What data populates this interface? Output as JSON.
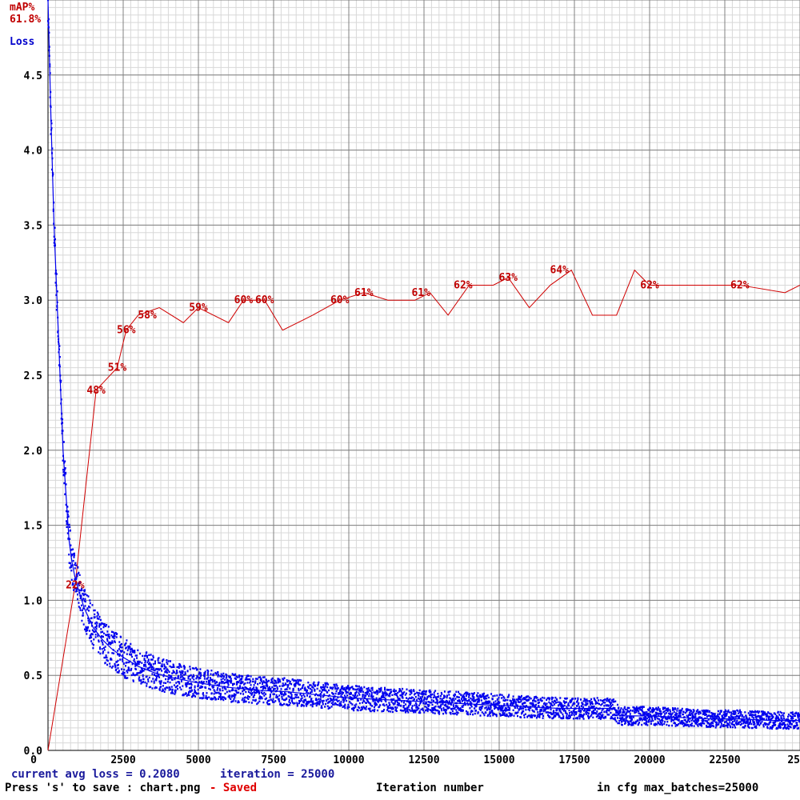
{
  "legend": {
    "map_label": "mAP%",
    "map_value": "61.8%",
    "loss_label": "Loss"
  },
  "status": {
    "current_loss": "current avg loss = 0.2080",
    "iteration": "iteration = 25000",
    "save_hint": "Press 's' to save : chart.png",
    "saved": "- Saved",
    "xlabel": "Iteration number",
    "max_batches": "in cfg max_batches=25000"
  },
  "colors": {
    "loss": "#0000ee",
    "map": "#d00000",
    "grid_major": "#808080",
    "grid_minor": "#d8d8d8"
  },
  "chart_data": {
    "type": "line",
    "xlabel": "Iteration number",
    "ylabel": "Loss",
    "xlim": [
      0,
      25000
    ],
    "ylim": [
      0,
      5.0
    ],
    "x_ticks": [
      "0",
      "2500",
      "5000",
      "7500",
      "10000",
      "12500",
      "15000",
      "17500",
      "20000",
      "22500",
      "25"
    ],
    "y_ticks": [
      "0.0",
      "0.5",
      "1.0",
      "1.5",
      "2.0",
      "2.5",
      "3.0",
      "3.5",
      "4.0",
      "4.5"
    ],
    "grid": true,
    "series": [
      {
        "name": "Loss",
        "x": [
          0,
          100,
          200,
          300,
          400,
          500,
          600,
          700,
          800,
          900,
          1000,
          1200,
          1500,
          1800,
          2100,
          2500,
          3000,
          3500,
          4000,
          5000,
          6000,
          7000,
          8000,
          9000,
          10000,
          11000,
          12000,
          13000,
          14000,
          15000,
          16000,
          17000,
          18000,
          18800,
          19000,
          20000,
          21000,
          22000,
          23000,
          24000,
          25000
        ],
        "values": [
          5.0,
          4.2,
          3.5,
          3.0,
          2.5,
          2.0,
          1.7,
          1.4,
          1.25,
          1.15,
          1.08,
          0.95,
          0.82,
          0.74,
          0.68,
          0.62,
          0.56,
          0.52,
          0.49,
          0.45,
          0.42,
          0.4,
          0.39,
          0.37,
          0.35,
          0.34,
          0.33,
          0.32,
          0.31,
          0.3,
          0.29,
          0.28,
          0.28,
          0.28,
          0.23,
          0.23,
          0.22,
          0.21,
          0.21,
          0.2,
          0.2
        ]
      },
      {
        "name": "mAP%",
        "x": [
          0,
          900,
          1600,
          2300,
          2600,
          3000,
          3700,
          4500,
          5000,
          6000,
          6500,
          7200,
          7800,
          8800,
          9700,
          10500,
          11300,
          12200,
          12700,
          13300,
          14000,
          14800,
          15300,
          16000,
          16700,
          17400,
          18100,
          18900,
          19500,
          20000,
          21000,
          22000,
          23000,
          24500,
          25000
        ],
        "values": [
          0,
          22,
          48,
          51,
          56,
          58,
          59,
          57,
          59,
          57,
          60,
          60,
          56,
          58,
          60,
          61,
          60,
          60,
          61,
          58,
          62,
          62,
          63,
          59,
          62,
          64,
          58,
          58,
          64,
          62,
          62,
          62,
          62,
          61,
          62
        ]
      }
    ],
    "map_labels": [
      {
        "x": 900,
        "y": 22,
        "text": "22%"
      },
      {
        "x": 1600,
        "y": 48,
        "text": "48%"
      },
      {
        "x": 2300,
        "y": 51,
        "text": "51%"
      },
      {
        "x": 2600,
        "y": 56,
        "text": "56%"
      },
      {
        "x": 3300,
        "y": 58,
        "text": "58%"
      },
      {
        "x": 5000,
        "y": 59,
        "text": "59%"
      },
      {
        "x": 6500,
        "y": 60,
        "text": "60%"
      },
      {
        "x": 7200,
        "y": 60,
        "text": "60%"
      },
      {
        "x": 9700,
        "y": 60,
        "text": "60%"
      },
      {
        "x": 10500,
        "y": 61,
        "text": "61%"
      },
      {
        "x": 12400,
        "y": 61,
        "text": "61%"
      },
      {
        "x": 13800,
        "y": 62,
        "text": "62%"
      },
      {
        "x": 15300,
        "y": 63,
        "text": "63%"
      },
      {
        "x": 17000,
        "y": 64,
        "text": "64%"
      },
      {
        "x": 20000,
        "y": 62,
        "text": "62%"
      },
      {
        "x": 23000,
        "y": 62,
        "text": "62%"
      }
    ]
  }
}
